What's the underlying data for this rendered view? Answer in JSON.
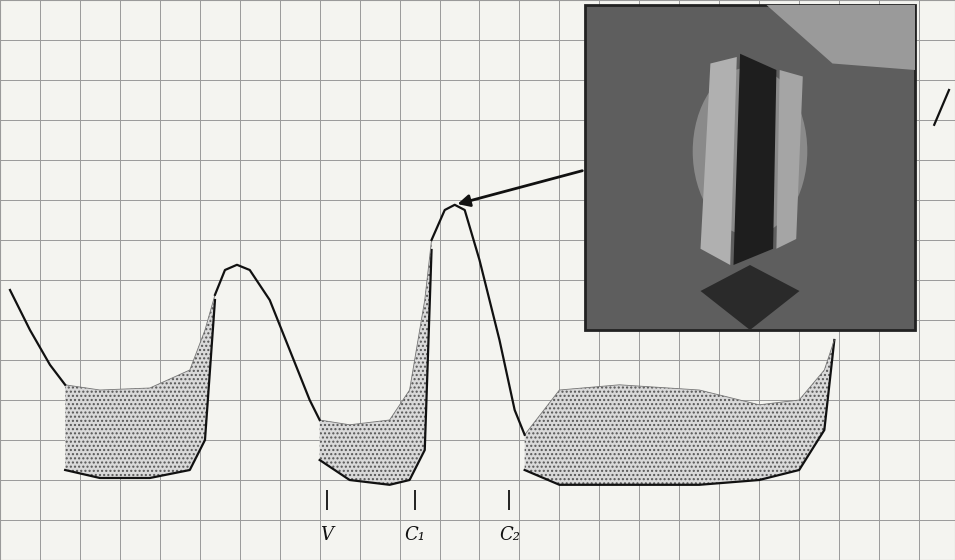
{
  "chart_data": {
    "type": "line",
    "xlim": [
      0,
      23.9
    ],
    "ylim": [
      0,
      14
    ],
    "xticks": [
      0,
      1,
      2,
      3,
      4,
      5,
      6,
      7,
      8,
      9,
      10,
      11,
      12,
      13,
      14,
      15,
      16,
      17,
      18,
      19,
      20,
      21,
      22,
      23
    ],
    "yticks": [
      0,
      1,
      2,
      3,
      4,
      5,
      6,
      7,
      8,
      9,
      10,
      11,
      12,
      13,
      14
    ],
    "grid": true,
    "tick_labels": false,
    "color": "#111111",
    "trace": [
      {
        "x": [
          0.25,
          0.75,
          1.25,
          1.63
        ],
        "y": [
          6.75,
          5.75,
          4.88,
          4.38
        ]
      },
      {
        "x": [
          5.38,
          5.63,
          5.93,
          6.25,
          6.75,
          7.25,
          7.75,
          8.0
        ],
        "y": [
          6.63,
          7.25,
          7.38,
          7.25,
          6.5,
          5.25,
          4.0,
          3.5
        ]
      },
      {
        "x": [
          10.8,
          11.13,
          11.38,
          11.63,
          12.0,
          12.5,
          12.88,
          13.13
        ],
        "y": [
          8.0,
          8.75,
          8.88,
          8.75,
          7.5,
          5.5,
          3.75,
          3.13
        ]
      },
      {
        "x": [
          23.38,
          23.75
        ],
        "y": [
          10.88,
          11.75
        ]
      }
    ],
    "envelopes": [
      {
        "x": [
          1.63,
          2.5,
          3.75,
          4.75,
          5.13,
          5.38
        ],
        "upper": [
          4.38,
          4.25,
          4.3,
          4.75,
          5.75,
          6.63
        ],
        "lower": [
          2.25,
          2.05,
          2.05,
          2.25,
          3.0,
          6.5
        ]
      },
      {
        "x": [
          8.0,
          8.75,
          9.75,
          10.25,
          10.63,
          10.8
        ],
        "upper": [
          3.5,
          3.38,
          3.5,
          4.25,
          6.5,
          8.0
        ],
        "lower": [
          2.5,
          2.0,
          1.88,
          2.0,
          2.75,
          7.75
        ]
      },
      {
        "x": [
          13.13,
          14.0,
          15.5,
          17.5,
          19.0,
          20.0,
          20.63,
          20.88
        ],
        "upper": [
          3.13,
          4.25,
          4.38,
          4.25,
          3.88,
          4.0,
          4.75,
          5.5
        ],
        "lower": [
          2.25,
          1.88,
          1.88,
          1.88,
          2.0,
          2.25,
          3.25,
          5.5
        ]
      }
    ],
    "markers": [
      {
        "label": "V",
        "x": 8.18
      },
      {
        "label": "C₁",
        "x": 10.38
      },
      {
        "label": "C₂",
        "x": 12.75
      }
    ]
  }
}
